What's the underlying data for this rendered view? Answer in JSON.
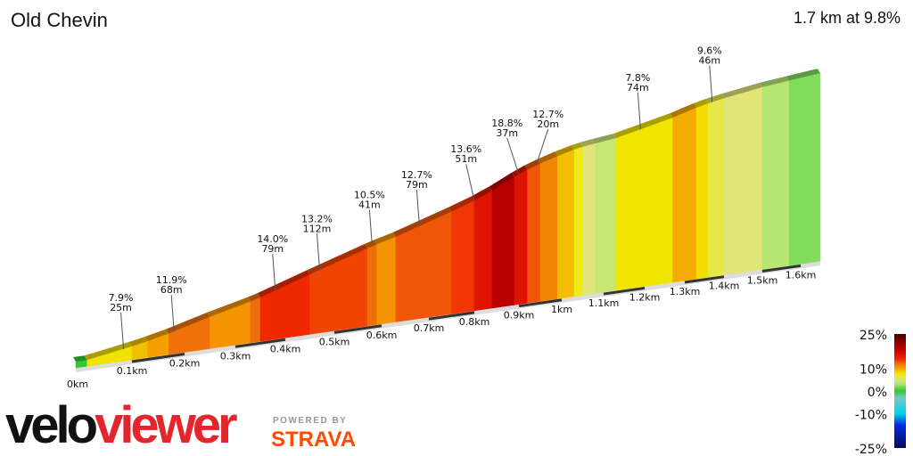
{
  "header": {
    "title": "Old Chevin",
    "summary": "1.7 km at 9.8%"
  },
  "branding": {
    "logo_part1": "velo",
    "logo_part2": "viewer",
    "powered_by": "POWERED BY",
    "strava": "STRAVA",
    "strava_color": "#fc4c02",
    "viewer_color": "#e3262d"
  },
  "chart_data": {
    "type": "area",
    "xlabel": "",
    "ylabel": "",
    "x_ticks": [
      "0km",
      "0.1km",
      "0.2km",
      "0.3km",
      "0.4km",
      "0.5km",
      "0.6km",
      "0.7km",
      "0.8km",
      "0.9km",
      "1km",
      "1.1km",
      "1.2km",
      "1.3km",
      "1.4km",
      "1.5km",
      "1.6km"
    ],
    "x_range_km": [
      0,
      1.7
    ],
    "segments": [
      {
        "from": 0,
        "to": 0.02,
        "gradient": 0
      },
      {
        "from": 0.02,
        "to": 0.1,
        "gradient": 7.9
      },
      {
        "from": 0.1,
        "to": 0.13,
        "gradient": 9
      },
      {
        "from": 0.13,
        "to": 0.17,
        "gradient": 10
      },
      {
        "from": 0.17,
        "to": 0.25,
        "gradient": 11.9
      },
      {
        "from": 0.25,
        "to": 0.33,
        "gradient": 10.5
      },
      {
        "from": 0.33,
        "to": 0.35,
        "gradient": 12
      },
      {
        "from": 0.35,
        "to": 0.45,
        "gradient": 14.0
      },
      {
        "from": 0.45,
        "to": 0.57,
        "gradient": 13.2
      },
      {
        "from": 0.57,
        "to": 0.59,
        "gradient": 12
      },
      {
        "from": 0.59,
        "to": 0.63,
        "gradient": 10.5
      },
      {
        "from": 0.63,
        "to": 0.75,
        "gradient": 12.7
      },
      {
        "from": 0.75,
        "to": 0.8,
        "gradient": 13.6
      },
      {
        "from": 0.8,
        "to": 0.84,
        "gradient": 16
      },
      {
        "from": 0.84,
        "to": 0.89,
        "gradient": 18.8
      },
      {
        "from": 0.89,
        "to": 0.92,
        "gradient": 16
      },
      {
        "from": 0.92,
        "to": 0.95,
        "gradient": 12.7
      },
      {
        "from": 0.95,
        "to": 0.99,
        "gradient": 11
      },
      {
        "from": 0.99,
        "to": 1.03,
        "gradient": 9
      },
      {
        "from": 1.03,
        "to": 1.05,
        "gradient": 7
      },
      {
        "from": 1.05,
        "to": 1.08,
        "gradient": 5
      },
      {
        "from": 1.08,
        "to": 1.13,
        "gradient": 4
      },
      {
        "from": 1.13,
        "to": 1.27,
        "gradient": 7.8
      },
      {
        "from": 1.27,
        "to": 1.33,
        "gradient": 9.6
      },
      {
        "from": 1.33,
        "to": 1.36,
        "gradient": 8
      },
      {
        "from": 1.36,
        "to": 1.4,
        "gradient": 6
      },
      {
        "from": 1.4,
        "to": 1.5,
        "gradient": 5
      },
      {
        "from": 1.5,
        "to": 1.57,
        "gradient": 3.5
      },
      {
        "from": 1.57,
        "to": 1.7,
        "gradient": 2
      }
    ],
    "annotations": [
      {
        "km": 0.085,
        "gradient": "7.9%",
        "length": "25m"
      },
      {
        "km": 0.18,
        "gradient": "11.9%",
        "length": "68m"
      },
      {
        "km": 0.38,
        "gradient": "14.0%",
        "length": "79m"
      },
      {
        "km": 0.47,
        "gradient": "13.2%",
        "length": "112m"
      },
      {
        "km": 0.58,
        "gradient": "10.5%",
        "length": "41m"
      },
      {
        "km": 0.68,
        "gradient": "12.7%",
        "length": "79m"
      },
      {
        "km": 0.8,
        "gradient": "13.6%",
        "length": "51m"
      },
      {
        "km": 0.9,
        "gradient": "18.8%",
        "length": "37m"
      },
      {
        "km": 0.94,
        "gradient": "12.7%",
        "length": "20m"
      },
      {
        "km": 1.19,
        "gradient": "7.8%",
        "length": "74m"
      },
      {
        "km": 1.37,
        "gradient": "9.6%",
        "length": "46m"
      }
    ],
    "legend": {
      "labels": [
        "25%",
        "10%",
        "0%",
        "-10%",
        "-25%"
      ],
      "values": [
        25,
        10,
        0,
        -10,
        -25
      ],
      "placement": "bottom-right"
    }
  }
}
